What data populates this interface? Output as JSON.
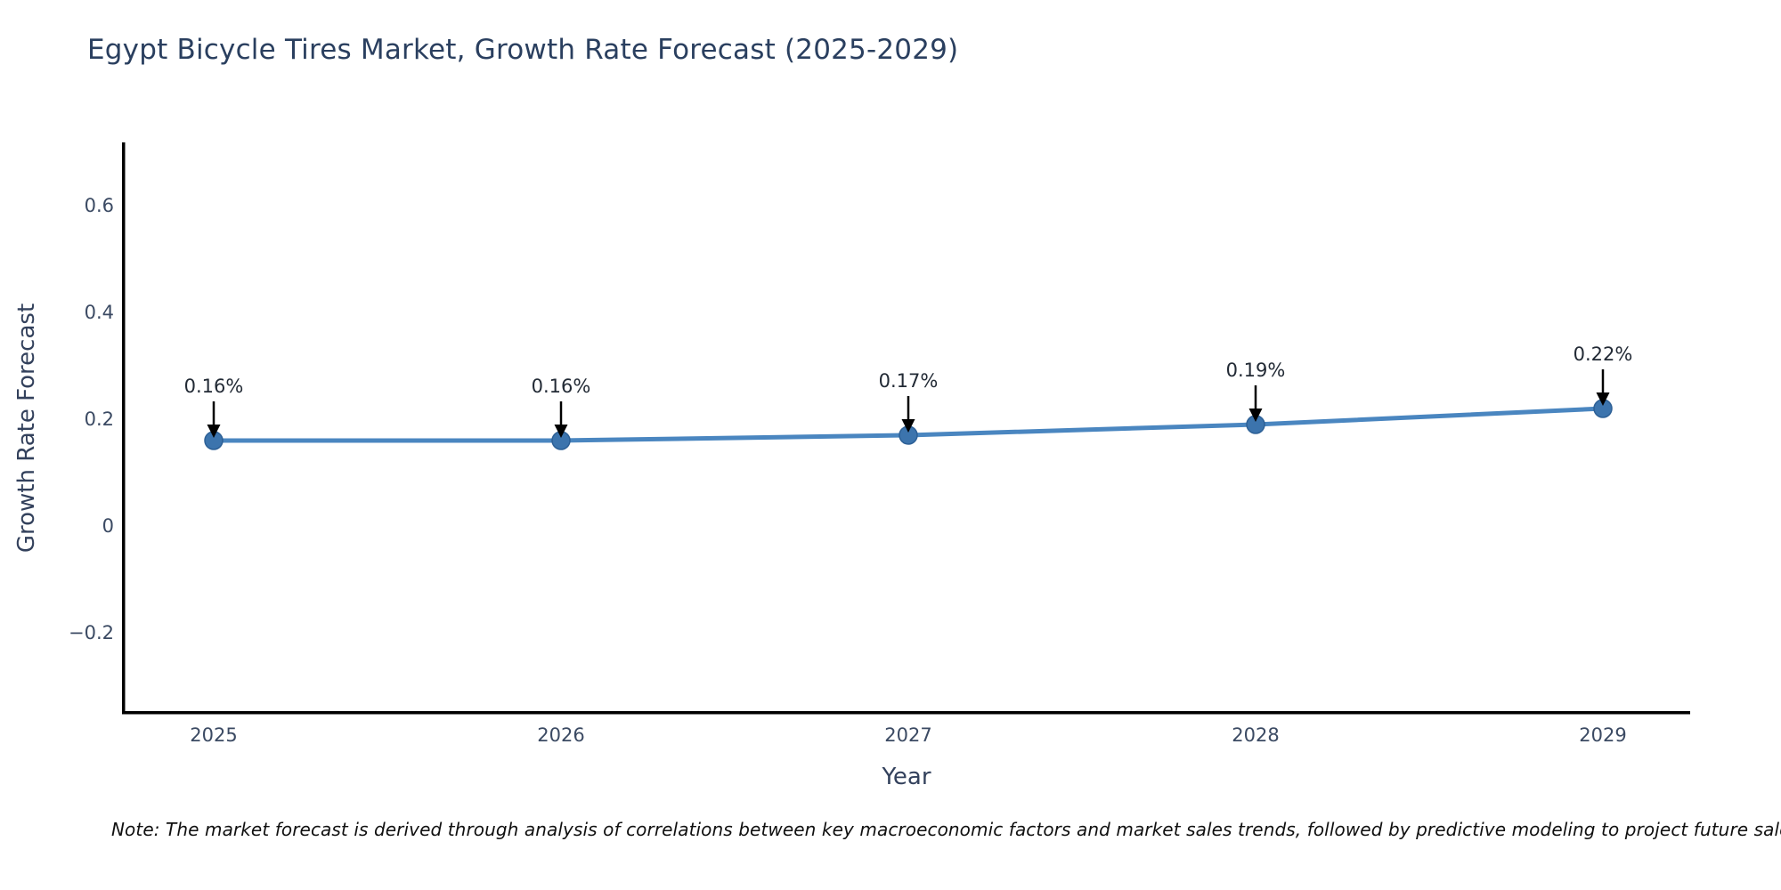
{
  "title": "Egypt Bicycle Tires Market, Growth Rate Forecast (2025-2029)",
  "note": "Note: The market forecast is derived through analysis of correlations between key macroeconomic factors and market sales trends, followed by predictive modeling to project future sales.",
  "chart_data": {
    "type": "line",
    "title": "Egypt Bicycle Tires Market, Growth Rate Forecast (2025-2029)",
    "xlabel": "Year",
    "ylabel": "Growth Rate Forecast",
    "x": [
      2025,
      2026,
      2027,
      2028,
      2029
    ],
    "x_tick_labels": [
      "2025",
      "2026",
      "2027",
      "2028",
      "2029"
    ],
    "series": [
      {
        "name": "Growth Rate Forecast",
        "values": [
          0.16,
          0.16,
          0.17,
          0.19,
          0.22
        ],
        "point_labels": [
          "0.16%",
          "0.16%",
          "0.17%",
          "0.19%",
          "0.22%"
        ]
      }
    ],
    "yticks": [
      -0.2,
      0,
      0.2,
      0.4,
      0.6
    ],
    "ytick_labels": [
      "−0.2",
      "0",
      "0.2",
      "0.4",
      "0.6"
    ],
    "ylim": [
      -0.35,
      0.72
    ],
    "grid": false,
    "legend": false,
    "colors": {
      "line": "#4a86c0",
      "marker_fill": "#3c74ad",
      "marker_edge": "#2d6096",
      "arrow": "#000000",
      "axis": "#000000",
      "title_text": "#2a3f5f",
      "tick_text": "#3b4a63"
    }
  }
}
